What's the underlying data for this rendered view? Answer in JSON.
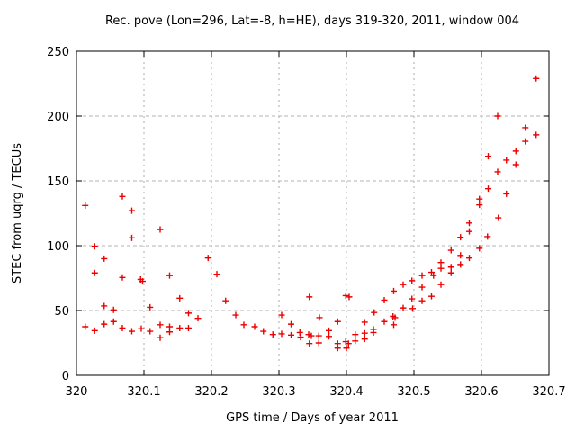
{
  "chart_data": {
    "type": "scatter",
    "title": "Rec. pove (Lon=296, Lat=-8, h=HE), days 319-320, 2011, window 004",
    "xlabel": "GPS time / Days of year 2011",
    "ylabel": "STEC from uqrg / TECUs",
    "xlim": [
      320,
      320.7
    ],
    "ylim": [
      0,
      250
    ],
    "xticks": [
      "320",
      "320.1",
      "320.2",
      "320.3",
      "320.4",
      "320.5",
      "320.6",
      "320.7"
    ],
    "xtick_values": [
      320,
      320.1,
      320.2,
      320.3,
      320.4,
      320.5,
      320.6,
      320.7
    ],
    "yticks": [
      "0",
      "50",
      "100",
      "150",
      "200",
      "250"
    ],
    "ytick_values": [
      0,
      50,
      100,
      150,
      200,
      250
    ],
    "grid": true,
    "legend": "none",
    "marker": "plus",
    "marker_color": "#ee0000",
    "points": [
      [
        320.013,
        131
      ],
      [
        320.013,
        37.5
      ],
      [
        320.027,
        99.5
      ],
      [
        320.027,
        79
      ],
      [
        320.027,
        34.5
      ],
      [
        320.041,
        90
      ],
      [
        320.041,
        53.5
      ],
      [
        320.041,
        39.5
      ],
      [
        320.055,
        50.5
      ],
      [
        320.055,
        41.5
      ],
      [
        320.068,
        138
      ],
      [
        320.068,
        75.5
      ],
      [
        320.068,
        36.5
      ],
      [
        320.082,
        127
      ],
      [
        320.082,
        106
      ],
      [
        320.082,
        34
      ],
      [
        320.095,
        74
      ],
      [
        320.098,
        72.5
      ],
      [
        320.096,
        36
      ],
      [
        320.109,
        52.5
      ],
      [
        320.109,
        34
      ],
      [
        320.124,
        112.5
      ],
      [
        320.124,
        39
      ],
      [
        320.124,
        29
      ],
      [
        320.138,
        77
      ],
      [
        320.138,
        37.5
      ],
      [
        320.138,
        33.5
      ],
      [
        320.153,
        59.5
      ],
      [
        320.153,
        36.5
      ],
      [
        320.166,
        48
      ],
      [
        320.166,
        36.5
      ],
      [
        320.18,
        44
      ],
      [
        320.195,
        90.5
      ],
      [
        320.208,
        78
      ],
      [
        320.221,
        57.5
      ],
      [
        320.236,
        46.5
      ],
      [
        320.248,
        39
      ],
      [
        320.264,
        37.5
      ],
      [
        320.277,
        34
      ],
      [
        320.291,
        31.5
      ],
      [
        320.304,
        46.5
      ],
      [
        320.304,
        32
      ],
      [
        320.318,
        39.5
      ],
      [
        320.318,
        31
      ],
      [
        320.331,
        33
      ],
      [
        320.332,
        29.5
      ],
      [
        320.345,
        60.5
      ],
      [
        320.344,
        31.5
      ],
      [
        320.348,
        30.5
      ],
      [
        320.345,
        24.5
      ],
      [
        320.36,
        44.5
      ],
      [
        320.359,
        30.5
      ],
      [
        320.359,
        25
      ],
      [
        320.374,
        34.5
      ],
      [
        320.374,
        30
      ],
      [
        320.387,
        41.5
      ],
      [
        320.387,
        24.5
      ],
      [
        320.387,
        21
      ],
      [
        320.399,
        61.5
      ],
      [
        320.404,
        60.5
      ],
      [
        320.399,
        26
      ],
      [
        320.403,
        24.5
      ],
      [
        320.4,
        21
      ],
      [
        320.413,
        31.5
      ],
      [
        320.413,
        26.5
      ],
      [
        320.427,
        41
      ],
      [
        320.427,
        32.5
      ],
      [
        320.427,
        28
      ],
      [
        320.441,
        48.5
      ],
      [
        320.44,
        35.5
      ],
      [
        320.44,
        33
      ],
      [
        320.456,
        58
      ],
      [
        320.456,
        41.5
      ],
      [
        320.47,
        65
      ],
      [
        320.469,
        45.5
      ],
      [
        320.472,
        44.5
      ],
      [
        320.47,
        39
      ],
      [
        320.484,
        70
      ],
      [
        320.484,
        52
      ],
      [
        320.497,
        73
      ],
      [
        320.497,
        59
      ],
      [
        320.498,
        51.5
      ],
      [
        320.512,
        77
      ],
      [
        320.512,
        68
      ],
      [
        320.512,
        57.5
      ],
      [
        320.526,
        79.5
      ],
      [
        320.529,
        77
      ],
      [
        320.526,
        61
      ],
      [
        320.54,
        87
      ],
      [
        320.54,
        82.5
      ],
      [
        320.54,
        70
      ],
      [
        320.555,
        96.5
      ],
      [
        320.555,
        83.5
      ],
      [
        320.555,
        79
      ],
      [
        320.569,
        106.5
      ],
      [
        320.569,
        92.5
      ],
      [
        320.569,
        85.5
      ],
      [
        320.582,
        117.5
      ],
      [
        320.582,
        111
      ],
      [
        320.582,
        90.5
      ],
      [
        320.597,
        136
      ],
      [
        320.597,
        131.5
      ],
      [
        320.597,
        98
      ],
      [
        320.61,
        169
      ],
      [
        320.61,
        144
      ],
      [
        320.609,
        107
      ],
      [
        320.624,
        200
      ],
      [
        320.624,
        157
      ],
      [
        320.625,
        121.5
      ],
      [
        320.637,
        166
      ],
      [
        320.637,
        140
      ],
      [
        320.651,
        173
      ],
      [
        320.651,
        162.5
      ],
      [
        320.665,
        191
      ],
      [
        320.665,
        180.5
      ],
      [
        320.681,
        229
      ],
      [
        320.681,
        185.5
      ]
    ]
  }
}
